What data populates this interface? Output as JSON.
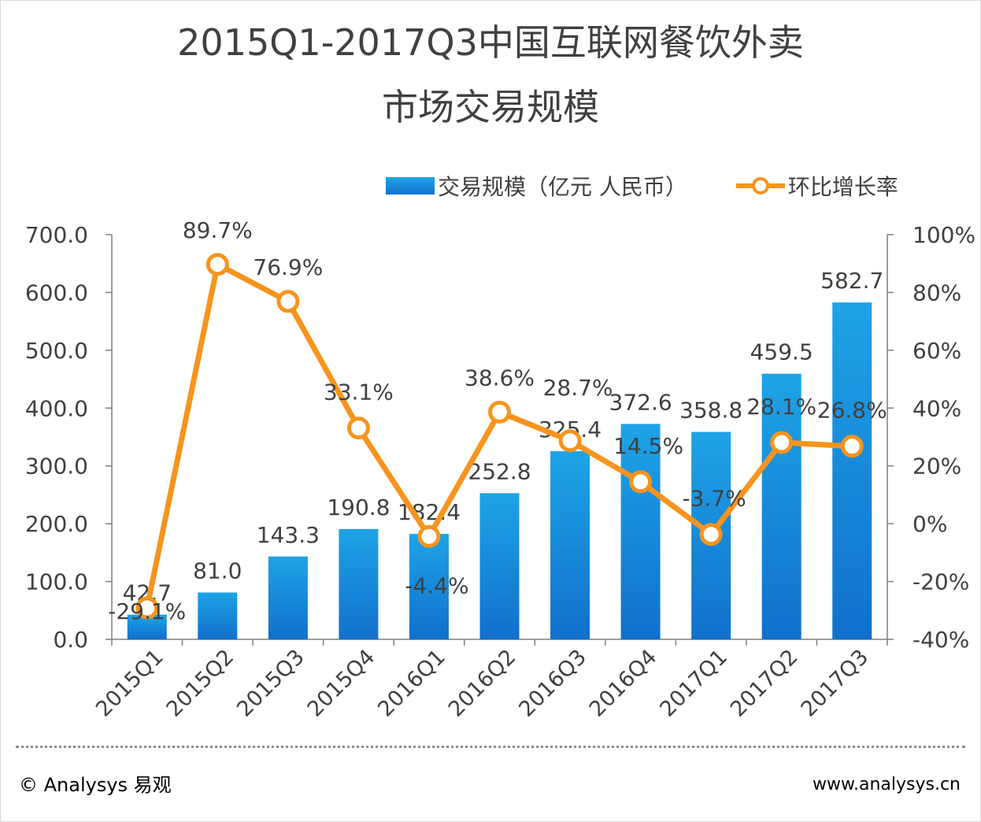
{
  "header": {
    "title_line1": "2015Q1-2017Q3中国互联网餐饮外卖",
    "title_line2": "市场交易规模"
  },
  "legend": {
    "bar_label": "交易规模（亿元 人民币）",
    "line_label": "环比增长率"
  },
  "chart_data": {
    "type": "bar+line",
    "title": "2015Q1-2017Q3中国互联网餐饮外卖市场交易规模",
    "categories": [
      "2015Q1",
      "2015Q2",
      "2015Q3",
      "2015Q4",
      "2016Q1",
      "2016Q2",
      "2016Q3",
      "2016Q4",
      "2017Q1",
      "2017Q2",
      "2017Q3"
    ],
    "series": [
      {
        "name": "交易规模（亿元 人民币）",
        "type": "bar",
        "axis": "left",
        "values": [
          42.7,
          81.0,
          143.3,
          190.8,
          182.4,
          252.8,
          325.4,
          372.6,
          358.8,
          459.5,
          582.7
        ],
        "labels": [
          "42.7",
          "81.0",
          "143.3",
          "190.8",
          "182.4",
          "252.8",
          "325.4",
          "372.6",
          "358.8",
          "459.5",
          "582.7"
        ]
      },
      {
        "name": "环比增长率",
        "type": "line",
        "axis": "right",
        "values": [
          -29.1,
          89.7,
          76.9,
          33.1,
          -4.4,
          38.6,
          28.7,
          14.5,
          -3.7,
          28.1,
          26.8
        ],
        "labels": [
          "-29.1%",
          "89.7%",
          "76.9%",
          "33.1%",
          "-4.4%",
          "38.6%",
          "28.7%",
          "14.5%",
          "-3.7%",
          "28.1%",
          "26.8%"
        ]
      }
    ],
    "y_left": {
      "min": 0,
      "max": 700,
      "ticks": [
        "0.0",
        "100.0",
        "200.0",
        "300.0",
        "400.0",
        "500.0",
        "600.0",
        "700.0"
      ]
    },
    "y_right": {
      "min": -40,
      "max": 100,
      "ticks": [
        "-40%",
        "-20%",
        "0%",
        "20%",
        "40%",
        "60%",
        "80%",
        "100%"
      ]
    },
    "colors": {
      "bar_top": "#1ea3e6",
      "bar_bottom": "#1170cc",
      "line": "#f7941d",
      "axis": "#7f7f7f",
      "text": "#404040"
    },
    "grid": false,
    "legend_position": "top-right"
  },
  "footer": {
    "left": "© Analysys 易观",
    "right": "www.analysys.cn"
  }
}
